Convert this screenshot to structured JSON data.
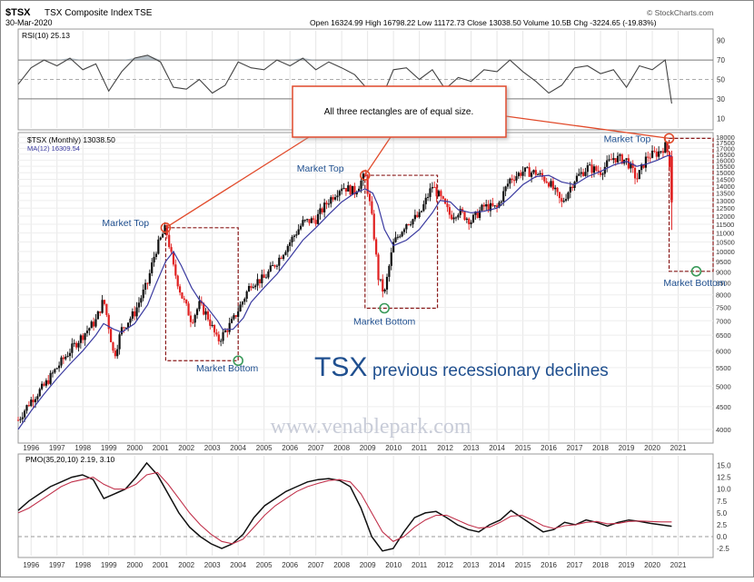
{
  "header": {
    "symbol": "$TSX",
    "name": "TSX Composite Index",
    "exchange": "TSE",
    "date": "30-Mar-2020",
    "ohlc": "Open 16324.99  High 16798.22  Low 11172.73  Close 13038.50  Volume 10.5B  Chg -3224.65 (-19.83%)",
    "watermark_brand": "© StockCharts.com"
  },
  "site_watermark": "www.venablepark.com",
  "annotation_text": "All three rectangles are of equal size.",
  "main_title": "TSX",
  "main_subtitle": "previous recessionary declines",
  "colors": {
    "up": "#111111",
    "down": "#e02020",
    "ma": "#3a3aa0",
    "pmo_black": "#111111",
    "pmo_signal": "#c0304a",
    "rsi": "#444444",
    "rsi_fill": "#9aa7b0",
    "annotation": "#e14a2a",
    "label_blue": "#1f4f8f",
    "circle_top": "#e14a2a",
    "circle_bottom": "#3a9a5a"
  },
  "chart_data": [
    {
      "type": "line",
      "panel": "rsi",
      "label": "RSI(10) 25.13",
      "y_ticks": [
        10,
        30,
        50,
        70,
        90
      ],
      "ylim": [
        0,
        100
      ],
      "reference_lines": [
        30,
        50,
        70
      ],
      "x": [
        1995.0,
        1995.5,
        1996.0,
        1996.5,
        1997.0,
        1997.5,
        1998.0,
        1998.5,
        1999.0,
        1999.5,
        2000.0,
        2000.5,
        2001.0,
        2001.5,
        2002.0,
        2002.5,
        2003.0,
        2003.5,
        2004.0,
        2004.5,
        2005.0,
        2005.5,
        2006.0,
        2006.5,
        2007.0,
        2007.5,
        2008.0,
        2008.5,
        2009.0,
        2009.5,
        2010.0,
        2010.5,
        2011.0,
        2011.5,
        2012.0,
        2012.5,
        2013.0,
        2013.5,
        2014.0,
        2014.5,
        2015.0,
        2015.5,
        2016.0,
        2016.5,
        2017.0,
        2017.5,
        2018.0,
        2018.5,
        2019.0,
        2019.5,
        2020.0,
        2020.25
      ],
      "values": [
        45,
        62,
        70,
        64,
        72,
        60,
        66,
        38,
        58,
        72,
        75,
        68,
        42,
        40,
        50,
        36,
        44,
        68,
        62,
        60,
        70,
        64,
        72,
        60,
        68,
        62,
        55,
        40,
        28,
        60,
        62,
        50,
        60,
        40,
        52,
        48,
        60,
        58,
        70,
        58,
        48,
        36,
        44,
        62,
        64,
        56,
        60,
        42,
        64,
        60,
        70,
        25.13
      ]
    },
    {
      "type": "candlestick",
      "panel": "price",
      "label": "$TSX (Monthly) 13038.50",
      "ma_label": "MA(12) 16309.54",
      "y_ticks": [
        4000,
        4500,
        5000,
        5500,
        6000,
        6500,
        7000,
        7500,
        8000,
        8500,
        9000,
        9500,
        10000,
        10500,
        11000,
        11500,
        12000,
        12500,
        13000,
        13500,
        14000,
        14500,
        15000,
        15500,
        16000,
        16500,
        17000,
        17500,
        18000
      ],
      "x_labels": [
        "1996",
        "1997",
        "1998",
        "1999",
        "2000",
        "2001",
        "2002",
        "2003",
        "2004",
        "2005",
        "2006",
        "2007",
        "2008",
        "2009",
        "2010",
        "2011",
        "2012",
        "2013",
        "2014",
        "2015",
        "2016",
        "2017",
        "2018",
        "2019",
        "2020",
        "2021"
      ],
      "x": [
        1995.0,
        1995.5,
        1996.0,
        1996.5,
        1997.0,
        1997.5,
        1998.0,
        1998.3,
        1998.7,
        1999.0,
        1999.5,
        2000.0,
        2000.3,
        2000.7,
        2001.0,
        2001.3,
        2001.7,
        2002.0,
        2002.3,
        2002.7,
        2002.9,
        2003.3,
        2003.7,
        2004.0,
        2004.5,
        2005.0,
        2005.5,
        2006.0,
        2006.5,
        2007.0,
        2007.5,
        2008.0,
        2008.4,
        2008.7,
        2008.9,
        2009.15,
        2009.5,
        2010.0,
        2010.5,
        2011.0,
        2011.3,
        2011.7,
        2012.0,
        2012.5,
        2013.0,
        2013.5,
        2014.0,
        2014.5,
        2015.0,
        2015.5,
        2016.0,
        2016.5,
        2017.0,
        2017.5,
        2018.0,
        2018.5,
        2018.9,
        2019.3,
        2019.7,
        2020.0,
        2020.15,
        2020.25
      ],
      "close": [
        4200,
        4650,
        5000,
        5500,
        6000,
        6500,
        7000,
        7800,
        5800,
        6700,
        7300,
        8500,
        10000,
        11300,
        9200,
        8000,
        7000,
        7600,
        7200,
        6300,
        6500,
        7000,
        7800,
        8500,
        8700,
        9500,
        10500,
        11600,
        11800,
        13000,
        14000,
        13600,
        14800,
        11500,
        8800,
        8000,
        10400,
        11600,
        12000,
        14000,
        13200,
        12000,
        12300,
        11700,
        12600,
        12500,
        14500,
        15100,
        15000,
        14300,
        12800,
        14500,
        15400,
        15100,
        16200,
        16000,
        14500,
        16300,
        16600,
        17200,
        16300,
        13038.5
      ],
      "ma": [
        4000,
        4400,
        4800,
        5200,
        5600,
        6000,
        6500,
        6900,
        6700,
        6600,
        6900,
        7600,
        8400,
        9500,
        10000,
        9300,
        8300,
        7800,
        7500,
        7000,
        6700,
        6700,
        7100,
        7700,
        8300,
        8900,
        9700,
        10600,
        11300,
        12100,
        12900,
        13500,
        13800,
        13500,
        12700,
        11200,
        10300,
        10600,
        11200,
        12200,
        13000,
        12900,
        12400,
        12200,
        12300,
        12500,
        13200,
        14100,
        14700,
        14800,
        14300,
        14100,
        14700,
        15100,
        15600,
        15900,
        15500,
        15700,
        16000,
        16300,
        16400,
        16309.54
      ],
      "annotations": [
        {
          "label": "Market Top",
          "x": 2000.7,
          "y": 11300
        },
        {
          "label": "Market Bottom",
          "x": 2002.9,
          "y": 5700
        },
        {
          "label": "Market Top",
          "x": 2008.4,
          "y": 14800
        },
        {
          "label": "Market Bottom",
          "x": 2009.15,
          "y": 7600
        },
        {
          "label": "Market Top",
          "x": 2020.15,
          "y": 17900
        },
        {
          "label": "Market Bottom",
          "x": 2021.2,
          "y": 9000
        }
      ]
    },
    {
      "type": "line",
      "panel": "pmo",
      "label": "PMO(35,20,10) 2.19, 3.10",
      "y_ticks": [
        -2.5,
        0.0,
        2.5,
        5.0,
        7.5,
        10.0,
        12.5,
        15.0
      ],
      "ylim": [
        -4,
        17
      ],
      "series": [
        {
          "name": "PMO",
          "values": [
            5.5,
            7.5,
            9,
            10.5,
            11.5,
            12.5,
            13,
            12,
            8,
            9,
            10,
            12.5,
            15.5,
            13,
            9,
            5,
            2,
            0,
            -1.5,
            -2.5,
            -1.5,
            0.5,
            4,
            6.5,
            8,
            9.5,
            10.5,
            11.5,
            12,
            12.2,
            11.8,
            10.5,
            6,
            0,
            -3,
            -2.5,
            1,
            4,
            5,
            5.3,
            4,
            2.5,
            1.5,
            1,
            2.5,
            3.5,
            5.5,
            4,
            2.5,
            1,
            1.5,
            3,
            2.5,
            3.5,
            3,
            2.2,
            3,
            3.5,
            3.2,
            2.8,
            2.5,
            2.19
          ]
        },
        {
          "name": "Signal",
          "values": [
            5,
            6,
            7.5,
            9,
            10.5,
            11.5,
            12,
            12.5,
            11,
            10,
            10,
            11,
            13,
            13.5,
            11,
            8,
            5,
            2.5,
            0.5,
            -1,
            -1.5,
            -0.5,
            2,
            4.5,
            6.5,
            8,
            9.5,
            10.5,
            11.2,
            11.8,
            12,
            11.5,
            9,
            5,
            1,
            -1,
            0,
            2,
            3.5,
            4.5,
            4.5,
            3.5,
            2.5,
            1.8,
            2,
            3,
            4.3,
            4.5,
            3.5,
            2.3,
            1.7,
            2.3,
            2.5,
            3,
            3.2,
            2.7,
            2.8,
            3.2,
            3.3,
            3.2,
            3.1,
            3.1
          ]
        }
      ]
    }
  ]
}
